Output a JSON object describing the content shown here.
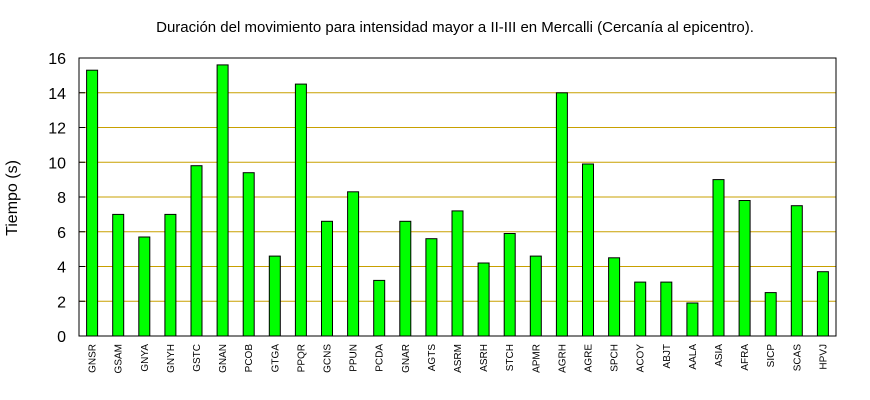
{
  "chart_data": {
    "type": "bar",
    "title": "Duración del movimiento para intensidad mayor a II-III en Mercalli (Cercanía al epicentro).",
    "xlabel": "",
    "ylabel": "Tiempo (s)",
    "ylim": [
      0,
      16
    ],
    "yticks": [
      0,
      2,
      4,
      6,
      8,
      10,
      12,
      14,
      16
    ],
    "grid": true,
    "colors": {
      "bar": "#00ff00",
      "grid": "#c8a000",
      "frame": "#000000"
    },
    "categories": [
      "GNSR",
      "GSAM",
      "GNYA",
      "GNYH",
      "GSTC",
      "GNAN",
      "PCOB",
      "GTGA",
      "PPQR",
      "GCNS",
      "PPUN",
      "PCDA",
      "GNAR",
      "AGTS",
      "ASRM",
      "ASRH",
      "STCH",
      "APMR",
      "AGRH",
      "AGRE",
      "SPCH",
      "ACOY",
      "ABJT",
      "AALA",
      "ASIA",
      "AFRA",
      "SICP",
      "SCAS",
      "HPVJ"
    ],
    "values": [
      15.3,
      7.0,
      5.7,
      7.0,
      9.8,
      15.6,
      9.4,
      4.6,
      14.5,
      6.6,
      8.3,
      3.2,
      6.6,
      5.6,
      7.2,
      4.2,
      5.9,
      4.6,
      14.0,
      9.9,
      4.5,
      3.1,
      3.1,
      1.9,
      9.0,
      7.8,
      2.5,
      7.5,
      3.7
    ]
  }
}
